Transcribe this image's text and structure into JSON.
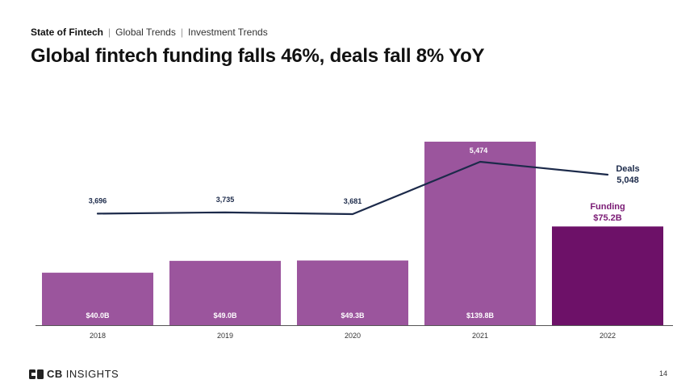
{
  "header": {
    "breadcrumb_main": "State of Fintech",
    "breadcrumb_separator": "|",
    "breadcrumb_2": "Global Trends",
    "breadcrumb_3": "Investment Trends",
    "title": "Global fintech funding falls 46%, deals fall 8% YoY"
  },
  "footer": {
    "logo_bold": "CB",
    "logo_text": "INSIGHTS",
    "page_number": "14"
  },
  "colors": {
    "bar": "#9b559d",
    "bar_highlight": "#6d1168",
    "line": "#1c2a4a",
    "axis": "#555555",
    "funding_label": "#7a1a74"
  },
  "chart_data": {
    "type": "bar",
    "categories": [
      "2018",
      "2019",
      "2020",
      "2021",
      "2022"
    ],
    "series": [
      {
        "name": "Funding",
        "unit": "$B",
        "values": [
          40.0,
          49.0,
          49.3,
          139.8,
          75.2
        ],
        "labels": [
          "$40.0B",
          "$49.0B",
          "$49.3B",
          "$139.8B",
          "$75.2B"
        ]
      },
      {
        "name": "Deals",
        "type": "line",
        "values": [
          3696,
          3735,
          3681,
          5474,
          5048
        ],
        "labels": [
          "3,696",
          "3,735",
          "3,681",
          "5,474",
          "5,048"
        ]
      }
    ],
    "callouts": {
      "deals_name": "Deals",
      "deals_value": "5,048",
      "funding_name": "Funding",
      "funding_value": "$75.2B"
    },
    "funding_range": [
      0,
      140
    ],
    "deals_range": [
      0,
      5700
    ],
    "highlight_index": 4,
    "grid": false
  }
}
